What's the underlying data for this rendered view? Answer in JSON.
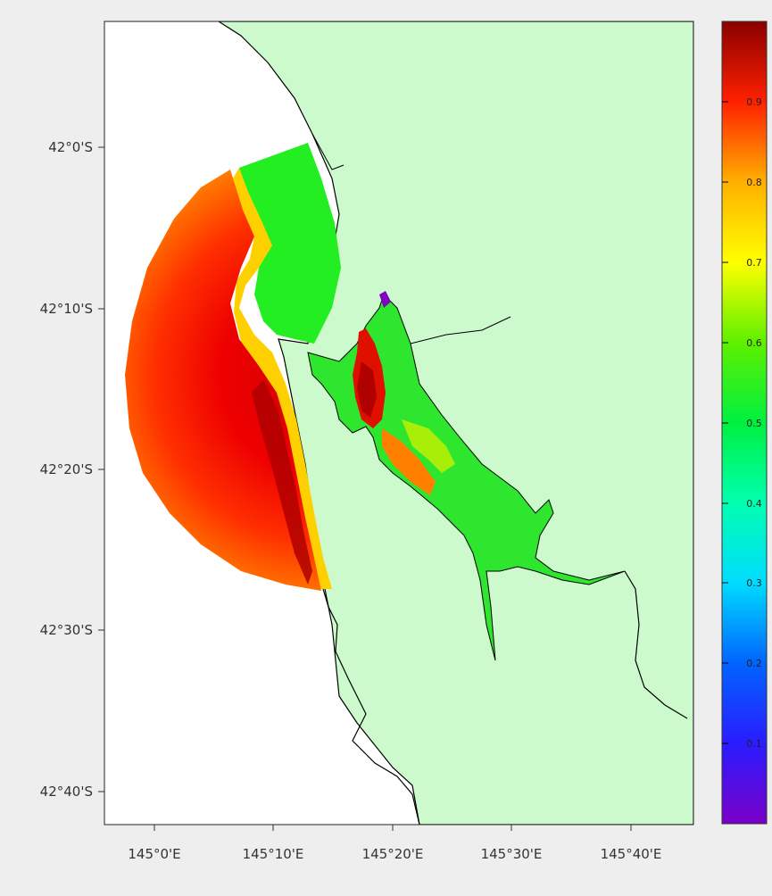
{
  "map": {
    "lat_labels": [
      "42°0'S",
      "42°10'S",
      "42°20'S",
      "42°30'S",
      "42°40'S"
    ],
    "lon_labels": [
      "145°0'E",
      "145°10'E",
      "145°20'E",
      "145°30'E",
      "145°40'E"
    ],
    "colors": {
      "land": "#ccfacc",
      "water": "#ffffff",
      "coastline": "#000000",
      "background": "#eeeeee"
    }
  },
  "colorbar": {
    "ticks": [
      "0.1",
      "0.2",
      "0.3",
      "0.4",
      "0.5",
      "0.6",
      "0.7",
      "0.8",
      "0.9"
    ],
    "tick_values": [
      0.1,
      0.2,
      0.3,
      0.4,
      0.5,
      0.6,
      0.7,
      0.8,
      0.9
    ],
    "range": [
      0.0,
      1.0
    ],
    "scheme": "rainbow"
  }
}
